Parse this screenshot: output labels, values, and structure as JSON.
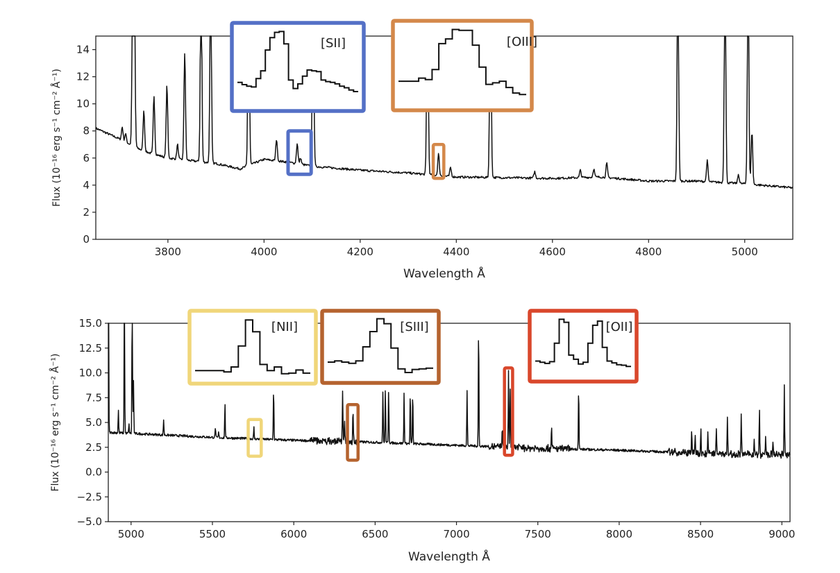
{
  "chart_data": [
    {
      "type": "line",
      "title": "",
      "xlabel": "Wavelength Å",
      "ylabel": "Flux (10⁻¹⁶ erg s⁻¹ cm⁻² Å⁻¹)",
      "xlim": [
        3650,
        5100
      ],
      "ylim": [
        0,
        15
      ],
      "xticks": [
        3800,
        4000,
        4200,
        4400,
        4600,
        4800,
        5000
      ],
      "yticks": [
        0,
        2,
        4,
        6,
        8,
        10,
        12,
        14
      ],
      "ytick_format": 0,
      "grid": false,
      "continuum": [
        [
          3650,
          8.2
        ],
        [
          3700,
          7.4
        ],
        [
          3750,
          6.5
        ],
        [
          3800,
          6.0
        ],
        [
          3900,
          5.6
        ],
        [
          3950,
          5.2
        ],
        [
          4000,
          5.9
        ],
        [
          4050,
          5.7
        ],
        [
          4100,
          5.4
        ],
        [
          4200,
          5.1
        ],
        [
          4300,
          4.9
        ],
        [
          4400,
          4.6
        ],
        [
          4500,
          4.55
        ],
        [
          4600,
          4.5
        ],
        [
          4700,
          4.6
        ],
        [
          4800,
          4.3
        ],
        [
          4900,
          4.3
        ],
        [
          5000,
          4.1
        ],
        [
          5100,
          3.8
        ]
      ],
      "lines": [
        {
          "wave": 3705,
          "peak": 8.3
        },
        {
          "wave": 3712,
          "peak": 7.8
        },
        {
          "wave": 3727,
          "peak": 20
        },
        {
          "wave": 3730,
          "peak": 20
        },
        {
          "wave": 3750,
          "peak": 9.5
        },
        {
          "wave": 3771,
          "peak": 10.6
        },
        {
          "wave": 3798,
          "peak": 11.4
        },
        {
          "wave": 3820,
          "peak": 7.0
        },
        {
          "wave": 3835,
          "peak": 13.8
        },
        {
          "wave": 3869,
          "peak": 20
        },
        {
          "wave": 3889,
          "peak": 20
        },
        {
          "wave": 3968,
          "peak": 20
        },
        {
          "wave": 4026,
          "peak": 7.4
        },
        {
          "wave": 4069,
          "peak": 7.1
        },
        {
          "wave": 4076,
          "peak": 6.0
        },
        {
          "wave": 4102,
          "peak": 20
        },
        {
          "wave": 4340,
          "peak": 20
        },
        {
          "wave": 4363,
          "peak": 6.3
        },
        {
          "wave": 4388,
          "peak": 5.3
        },
        {
          "wave": 4471,
          "peak": 20
        },
        {
          "wave": 4563,
          "peak": 5.0
        },
        {
          "wave": 4658,
          "peak": 5.1
        },
        {
          "wave": 4686,
          "peak": 5.2
        },
        {
          "wave": 4713,
          "peak": 5.6
        },
        {
          "wave": 4861,
          "peak": 20
        },
        {
          "wave": 4922,
          "peak": 5.8
        },
        {
          "wave": 4959,
          "peak": 20
        },
        {
          "wave": 4987,
          "peak": 4.8
        },
        {
          "wave": 5007,
          "peak": 20
        },
        {
          "wave": 5015,
          "peak": 8.0
        }
      ],
      "highlights": [
        {
          "label": "[SII]",
          "color": "#5470c6",
          "xrange": [
            4050,
            4098
          ],
          "yrange": [
            4.8,
            8.0
          ]
        },
        {
          "label": "[OIII]",
          "color": "#d4884a",
          "xrange": [
            4352,
            4374
          ],
          "yrange": [
            4.5,
            7.0
          ]
        }
      ]
    },
    {
      "type": "line",
      "title": "",
      "xlabel": "Wavelength Å",
      "ylabel": "Flux (10⁻¹⁶ erg s⁻¹ cm⁻² Å⁻¹)",
      "xlim": [
        4860,
        9050
      ],
      "ylim": [
        -5,
        15
      ],
      "xticks": [
        5000,
        5500,
        6000,
        6500,
        7000,
        7500,
        8000,
        8500,
        9000
      ],
      "yticks": [
        -5.0,
        -2.5,
        0.0,
        2.5,
        5.0,
        7.5,
        10.0,
        12.5,
        15.0
      ],
      "ytick_format": 1,
      "grid": false,
      "continuum": [
        [
          4860,
          4.0
        ],
        [
          5000,
          3.9
        ],
        [
          5500,
          3.5
        ],
        [
          6000,
          3.2
        ],
        [
          6500,
          3.0
        ],
        [
          7000,
          2.7
        ],
        [
          7500,
          2.4
        ],
        [
          8000,
          2.2
        ],
        [
          8500,
          1.9
        ],
        [
          9050,
          1.7
        ]
      ],
      "lines": [
        {
          "wave": 4861,
          "peak": 20
        },
        {
          "wave": 4922,
          "peak": 6.3
        },
        {
          "wave": 4959,
          "peak": 20
        },
        {
          "wave": 4987,
          "peak": 4.8
        },
        {
          "wave": 5007,
          "peak": 20
        },
        {
          "wave": 5015,
          "peak": 9.2
        },
        {
          "wave": 5200,
          "peak": 5.3
        },
        {
          "wave": 5518,
          "peak": 4.5
        },
        {
          "wave": 5538,
          "peak": 4.0
        },
        {
          "wave": 5577,
          "peak": 7.0
        },
        {
          "wave": 5755,
          "peak": 4.5
        },
        {
          "wave": 5876,
          "peak": 8.6
        },
        {
          "wave": 6300,
          "peak": 8.3
        },
        {
          "wave": 6312,
          "peak": 5.0
        },
        {
          "wave": 6364,
          "peak": 6.3
        },
        {
          "wave": 6548,
          "peak": 8.3
        },
        {
          "wave": 6563,
          "peak": 8.3
        },
        {
          "wave": 6583,
          "peak": 8.3
        },
        {
          "wave": 6678,
          "peak": 8.1
        },
        {
          "wave": 6716,
          "peak": 8.1
        },
        {
          "wave": 6731,
          "peak": 8.1
        },
        {
          "wave": 7065,
          "peak": 8.2
        },
        {
          "wave": 7136,
          "peak": 15.0
        },
        {
          "wave": 7320,
          "peak": 10.0
        },
        {
          "wave": 7330,
          "peak": 8.5
        },
        {
          "wave": 7281,
          "peak": 4.5
        },
        {
          "wave": 7584,
          "peak": 4.8
        },
        {
          "wave": 7751,
          "peak": 8.7
        },
        {
          "wave": 8446,
          "peak": 4.3
        },
        {
          "wave": 8467,
          "peak": 3.5
        },
        {
          "wave": 8502,
          "peak": 4.7
        },
        {
          "wave": 8545,
          "peak": 3.8
        },
        {
          "wave": 8598,
          "peak": 4.2
        },
        {
          "wave": 8665,
          "peak": 5.3
        },
        {
          "wave": 8750,
          "peak": 3.3
        },
        {
          "wave": 8862,
          "peak": 6.2
        },
        {
          "wave": 8900,
          "peak": 3.7
        },
        {
          "wave": 8945,
          "peak": 3.0
        },
        {
          "wave": 9015,
          "peak": 8.6
        },
        {
          "wave": 8595,
          "peak": 2.7
        },
        {
          "wave": 8750,
          "peak": 4.0
        },
        {
          "wave": 8830,
          "peak": 3.5
        }
      ],
      "highlights": [
        {
          "label": "[NII]",
          "color": "#f0d67a",
          "xrange": [
            5720,
            5800
          ],
          "yrange": [
            1.6,
            5.3
          ]
        },
        {
          "label": "[SIII]",
          "color": "#b5632f",
          "xrange": [
            6330,
            6395
          ],
          "yrange": [
            1.2,
            6.8
          ]
        },
        {
          "label": "[OII]",
          "color": "#d9472b",
          "xrange": [
            7295,
            7345
          ],
          "yrange": [
            1.7,
            10.5
          ]
        }
      ]
    }
  ],
  "insets": [
    {
      "label": "[SII]",
      "color": "#5470c6",
      "profile": [
        0.3,
        0.27,
        0.25,
        0.24,
        0.35,
        0.45,
        0.72,
        0.88,
        0.95,
        0.96,
        0.8,
        0.33,
        0.22,
        0.28,
        0.38,
        0.46,
        0.45,
        0.44,
        0.33,
        0.31,
        0.3,
        0.28,
        0.25,
        0.23,
        0.2,
        0.18
      ]
    },
    {
      "label": "[OIII]",
      "color": "#d4884a",
      "profile": [
        0.3,
        0.3,
        0.3,
        0.34,
        0.32,
        0.45,
        0.78,
        0.84,
        0.96,
        0.95,
        0.95,
        0.76,
        0.48,
        0.26,
        0.28,
        0.3,
        0.22,
        0.15,
        0.13
      ]
    },
    {
      "label": "[NII]",
      "color": "#f0d67a",
      "profile": [
        0.12,
        0.12,
        0.12,
        0.12,
        0.1,
        0.18,
        0.52,
        0.94,
        0.75,
        0.22,
        0.12,
        0.18,
        0.07,
        0.08,
        0.13,
        0.08
      ]
    },
    {
      "label": "[SIII]",
      "color": "#b5632f",
      "profile": [
        0.25,
        0.27,
        0.25,
        0.23,
        0.27,
        0.5,
        0.75,
        0.96,
        0.88,
        0.48,
        0.14,
        0.08,
        0.13,
        0.14,
        0.15
      ]
    },
    {
      "label": "[OII]",
      "color": "#d9472b",
      "profile": [
        0.25,
        0.23,
        0.21,
        0.24,
        0.55,
        0.95,
        0.9,
        0.35,
        0.28,
        0.2,
        0.23,
        0.55,
        0.85,
        0.92,
        0.48,
        0.25,
        0.22,
        0.19,
        0.18,
        0.16
      ]
    }
  ]
}
